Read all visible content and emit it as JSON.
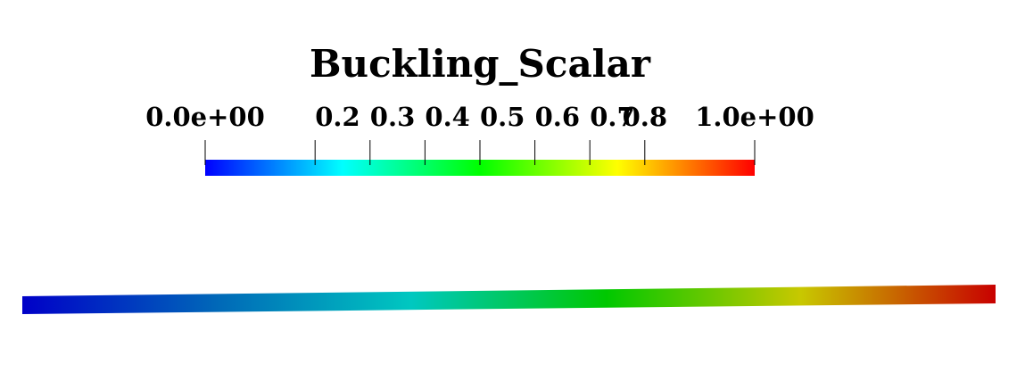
{
  "legend": {
    "title": "Buckling_Scalar",
    "range": [
      0.0,
      1.0
    ],
    "colormap": [
      "#0000ff",
      "#00ffff",
      "#00ff00",
      "#ffff00",
      "#ff0000"
    ],
    "ticks": [
      {
        "value": 0.0,
        "label": "0.0e+00"
      },
      {
        "value": 0.2,
        "label": "0.2"
      },
      {
        "value": 0.3,
        "label": "0.3"
      },
      {
        "value": 0.4,
        "label": "0.4"
      },
      {
        "value": 0.5,
        "label": "0.5"
      },
      {
        "value": 0.6,
        "label": "0.6"
      },
      {
        "value": 0.7,
        "label": "0.7"
      },
      {
        "value": 0.8,
        "label": "0.8"
      },
      {
        "value": 1.0,
        "label": "1.0e+00"
      }
    ]
  },
  "beam": {
    "colors": [
      "#0000c8",
      "#0068b8",
      "#00c8c0",
      "#00c800",
      "#c8c800",
      "#c80000"
    ]
  }
}
